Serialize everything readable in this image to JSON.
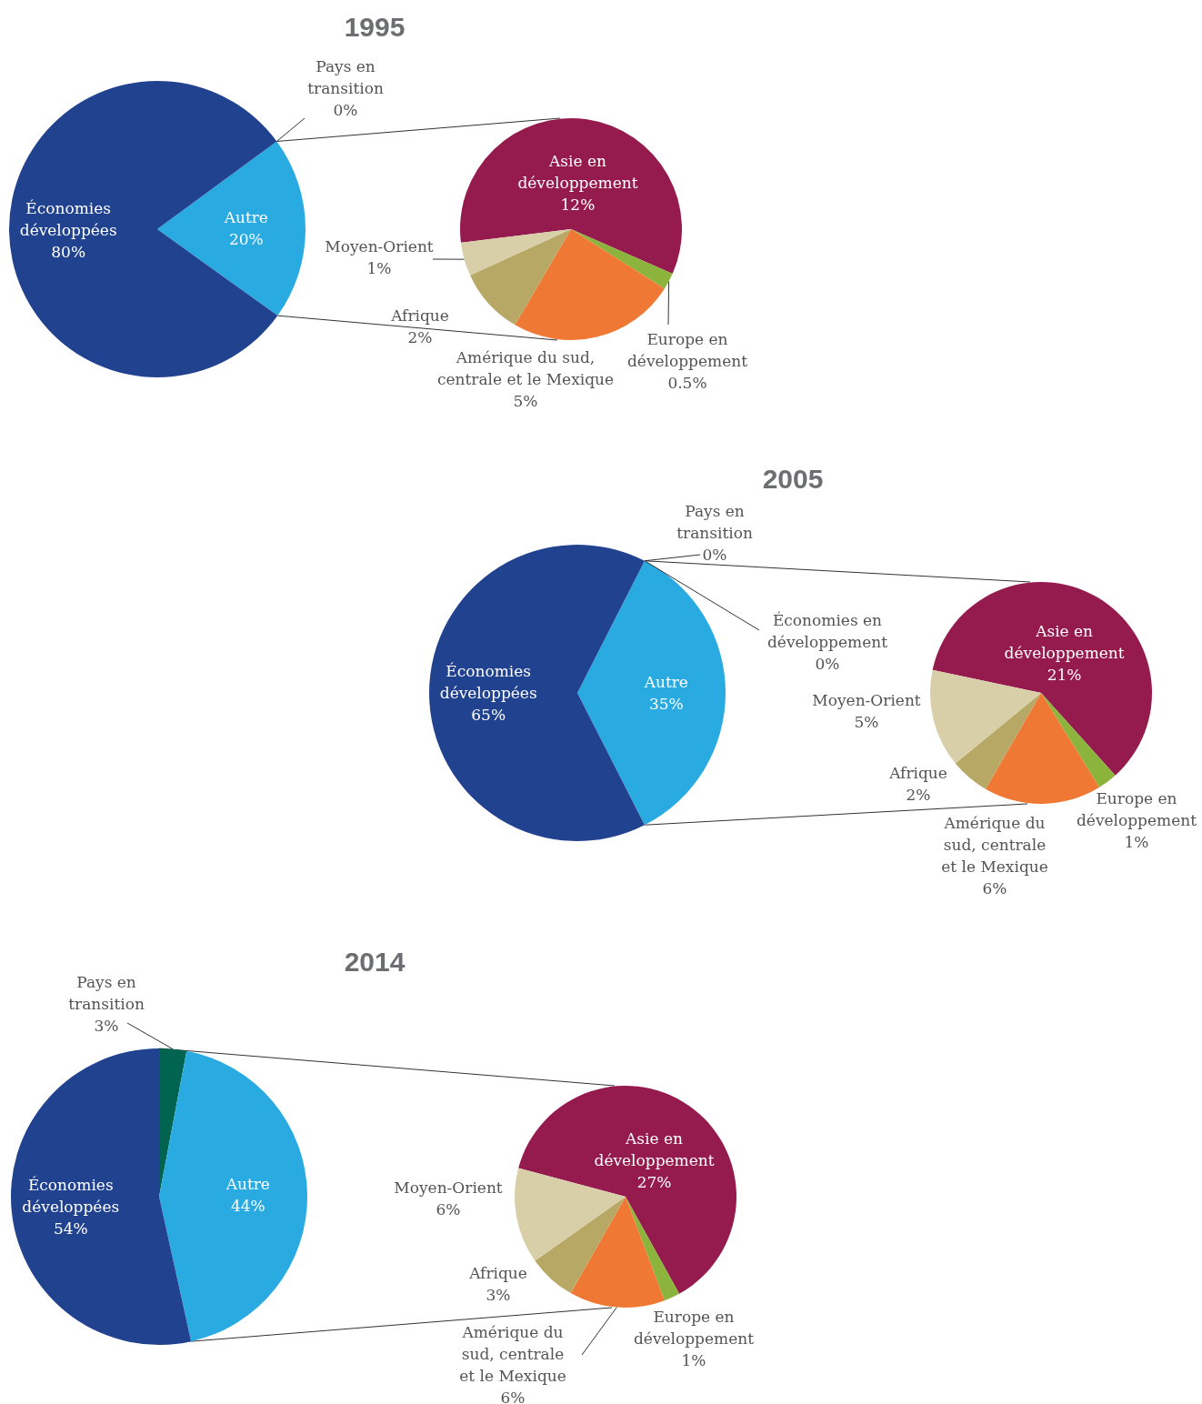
{
  "chart_data": [
    {
      "type": "pie",
      "title": "1995",
      "categories": [
        "Pays en transition",
        "Autre",
        "Économies développées"
      ],
      "values": [
        0,
        20,
        80
      ],
      "colors": [
        "#006450",
        "#29abe2",
        "#21428f"
      ],
      "value_labels": [
        "0%",
        "20%",
        "80%"
      ]
    },
    {
      "type": "pie",
      "categories": [
        "Asie en développement",
        "Europe en développement",
        "Amérique du sud, centrale et le Mexique",
        "Afrique",
        "Moyen-Orient"
      ],
      "values": [
        12,
        0.5,
        5,
        2,
        1
      ],
      "colors": [
        "#951b4f",
        "#8cb43c",
        "#f07835",
        "#b8a865",
        "#d8cfa8"
      ],
      "value_labels": [
        "12%",
        "0.5%",
        "5%",
        "2%",
        "1%"
      ]
    },
    {
      "type": "pie",
      "title": "2005",
      "categories": [
        "Pays en transition",
        "Économies en développement",
        "Autre",
        "Économies développées"
      ],
      "values": [
        0,
        0,
        35,
        65
      ],
      "colors": [
        "#006450",
        "#7f7f7f",
        "#29abe2",
        "#21428f"
      ],
      "value_labels": [
        "0%",
        "0%",
        "35%",
        "65%"
      ]
    },
    {
      "type": "pie",
      "categories": [
        "Asie en développement",
        "Europe en développement",
        "Amérique du sud, centrale et le Mexique",
        "Afrique",
        "Moyen-Orient"
      ],
      "values": [
        21,
        1,
        6,
        2,
        5
      ],
      "colors": [
        "#951b4f",
        "#8cb43c",
        "#f07835",
        "#b8a865",
        "#d8cfa8"
      ],
      "value_labels": [
        "21%",
        "1%",
        "6%",
        "2%",
        "5%"
      ]
    },
    {
      "type": "pie",
      "title": "2014",
      "categories": [
        "Pays en transition",
        "Autre",
        "Économies développées"
      ],
      "values": [
        3,
        44,
        54
      ],
      "colors": [
        "#006450",
        "#29abe2",
        "#21428f"
      ],
      "value_labels": [
        "3%",
        "44%",
        "54%"
      ]
    },
    {
      "type": "pie",
      "categories": [
        "Asie en développement",
        "Europe en développement",
        "Amérique du sud, centrale et le Mexique",
        "Afrique",
        "Moyen-Orient"
      ],
      "values": [
        27,
        1,
        6,
        3,
        6
      ],
      "colors": [
        "#951b4f",
        "#8cb43c",
        "#f07835",
        "#b8a865",
        "#d8cfa8"
      ],
      "value_labels": [
        "27%",
        "1%",
        "6%",
        "3%",
        "6%"
      ]
    }
  ]
}
